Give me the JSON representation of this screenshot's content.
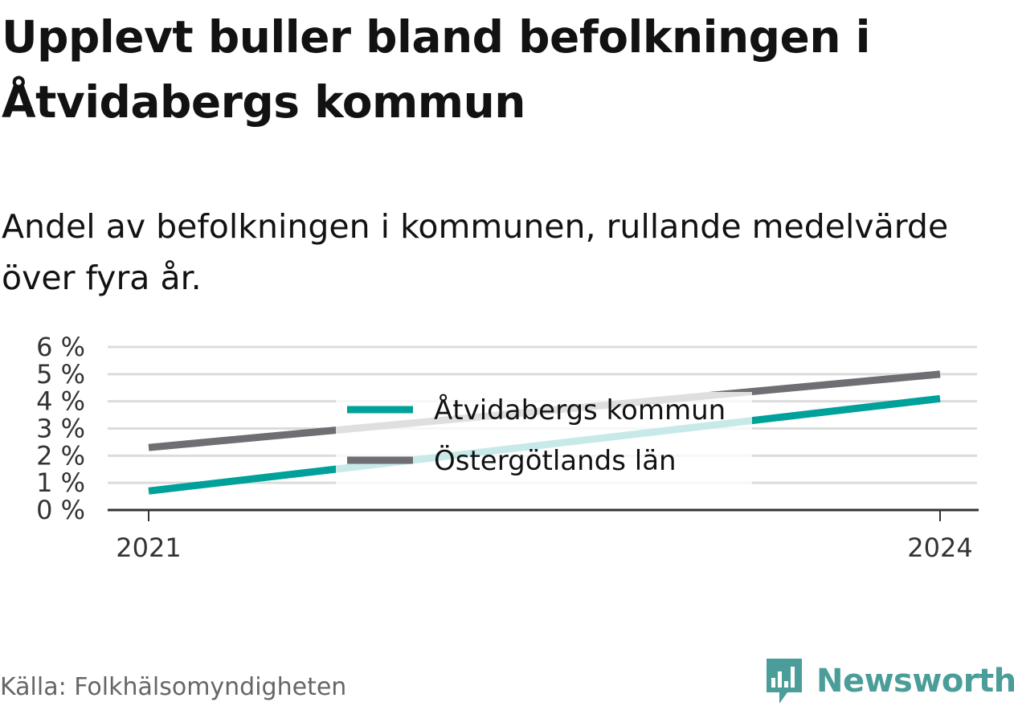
{
  "title": "Upplevt buller bland befolkningen i Åtvidabergs kommun",
  "subtitle": "Andel av befolkningen i kommunen, rullande medelvärde över fyra år.",
  "source": "Källa: Folkhälsomyndigheten",
  "brand": {
    "name": "Newsworthy",
    "color": "#4a9d98",
    "icon": "newsworthy-logo-icon"
  },
  "chart_data": {
    "type": "line",
    "x": [
      2021,
      2024
    ],
    "x_tick_labels": [
      "2021",
      "2024"
    ],
    "y_tick_labels": [
      "0 %",
      "1 %",
      "2 %",
      "3 %",
      "4 %",
      "5 %",
      "6 %"
    ],
    "ylim": [
      0,
      6
    ],
    "grid": true,
    "legend_position": "center",
    "series": [
      {
        "name": "Åtvidabergs kommun",
        "color": "#00a19a",
        "values": [
          0.7,
          4.1
        ]
      },
      {
        "name": "Östergötlands län",
        "color": "#6e6e73",
        "values": [
          2.3,
          5.0
        ]
      }
    ]
  }
}
